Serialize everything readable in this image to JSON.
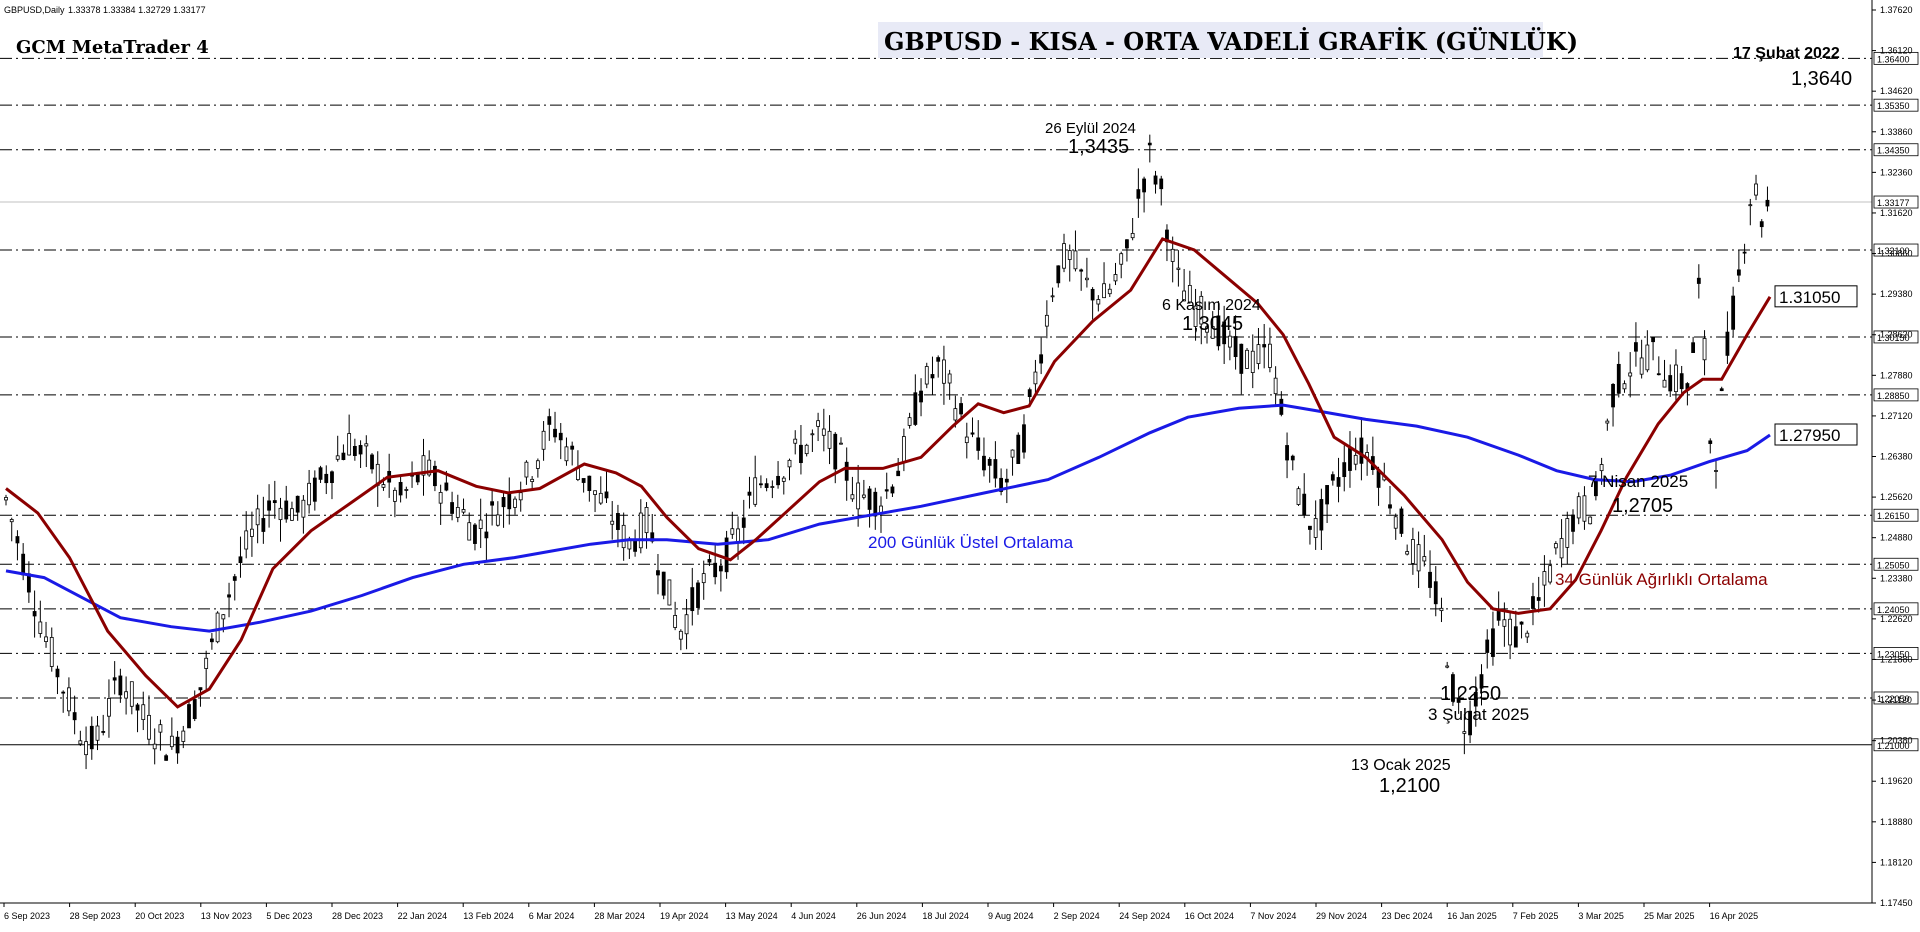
{
  "window": {
    "symbol_header": "GBPUSD,Daily",
    "ohlc_header": "1.33378 1.33384 1.32729 1.33177",
    "watermark": "GCM MetaTrader 4",
    "title": "GBPUSD - KISA - ORTA VADELİ GRAFİK (GÜNLÜK)"
  },
  "colors": {
    "background": "#ffffff",
    "candle": "#000000",
    "ema200": "#1a1ae6",
    "wma34": "#8b0000",
    "level_line": "#000000",
    "grid_label_bg": "#ffffff"
  },
  "chart_data": {
    "type": "candlestick",
    "title": "GBPUSD - KISA - ORTA VADELİ GRAFİK (GÜNLÜK)",
    "xlabel": "",
    "ylabel": "",
    "ylim": [
      1.1745,
      1.3762
    ],
    "y_ticks": [
      "1.37620",
      "1.36120",
      "1.34620",
      "1.33860",
      "1.32360",
      "1.31620",
      "1.30860",
      "1.29380",
      "1.28620",
      "1.27880",
      "1.27120",
      "1.26380",
      "1.25620",
      "1.24880",
      "1.23380",
      "1.22620",
      "1.21880",
      "1.21120",
      "1.20380",
      "1.19620",
      "1.18880",
      "1.18120",
      "1.17450"
    ],
    "x_ticks": [
      "6 Sep 2023",
      "28 Sep 2023",
      "20 Oct 2023",
      "13 Nov 2023",
      "5 Dec 2023",
      "28 Dec 2023",
      "22 Jan 2024",
      "13 Feb 2024",
      "6 Mar 2024",
      "28 Mar 2024",
      "19 Apr 2024",
      "13 May 2024",
      "4 Jun 2024",
      "26 Jun 2024",
      "18 Jul 2024",
      "9 Aug 2024",
      "2 Sep 2024",
      "24 Sep 2024",
      "16 Oct 2024",
      "7 Nov 2024",
      "29 Nov 2024",
      "23 Dec 2024",
      "16 Jan 2025",
      "7 Feb 2025",
      "3 Mar 2025",
      "25 Mar 2025",
      "16 Apr 2025"
    ],
    "horizontal_levels": [
      {
        "value": 1.364,
        "label": "1.36400"
      },
      {
        "value": 1.3535,
        "label": "1.35350"
      },
      {
        "value": 1.3435,
        "label": "1.34350"
      },
      {
        "value": 1.321,
        "label": "1.32100"
      },
      {
        "value": 1.3015,
        "label": "1.30150"
      },
      {
        "value": 1.2885,
        "label": "1.28850"
      },
      {
        "value": 1.2615,
        "label": "1.26150"
      },
      {
        "value": 1.2505,
        "label": "1.25050"
      },
      {
        "value": 1.2405,
        "label": "1.24050"
      },
      {
        "value": 1.2305,
        "label": "1.23050"
      },
      {
        "value": 1.2205,
        "label": "1.22050"
      },
      {
        "value": 1.21,
        "label": "1.21000"
      }
    ],
    "current_price": {
      "value": 1.33177,
      "label": "1.33177"
    },
    "series": [
      {
        "name": "200 Günlük Üstel Ortalama",
        "color": "#1a1ae6",
        "end_label": "1.27950",
        "points": [
          [
            0,
            1.249
          ],
          [
            30,
            1.2475
          ],
          [
            60,
            1.243
          ],
          [
            90,
            1.2385
          ],
          [
            130,
            1.2365
          ],
          [
            160,
            1.2355
          ],
          [
            200,
            1.2375
          ],
          [
            240,
            1.24
          ],
          [
            280,
            1.2435
          ],
          [
            320,
            1.2475
          ],
          [
            360,
            1.2505
          ],
          [
            400,
            1.252
          ],
          [
            430,
            1.2535
          ],
          [
            460,
            1.255
          ],
          [
            490,
            1.256
          ],
          [
            520,
            1.256
          ],
          [
            560,
            1.255
          ],
          [
            600,
            1.256
          ],
          [
            640,
            1.2595
          ],
          [
            680,
            1.2615
          ],
          [
            720,
            1.2635
          ],
          [
            770,
            1.2665
          ],
          [
            820,
            1.2695
          ],
          [
            860,
            1.2745
          ],
          [
            900,
            1.28
          ],
          [
            930,
            1.2835
          ],
          [
            970,
            1.2855
          ],
          [
            1005,
            1.2862
          ],
          [
            1030,
            1.285
          ],
          [
            1070,
            1.283
          ],
          [
            1110,
            1.2815
          ],
          [
            1150,
            1.279
          ],
          [
            1190,
            1.275
          ],
          [
            1220,
            1.2715
          ],
          [
            1250,
            1.2695
          ],
          [
            1280,
            1.269
          ],
          [
            1310,
            1.2705
          ],
          [
            1340,
            1.2735
          ],
          [
            1370,
            1.276
          ],
          [
            1388,
            1.2795
          ]
        ]
      },
      {
        "name": "34 Günlük Ağırlıklı Ortalama",
        "color": "#8b0000",
        "end_label": "1.31050",
        "points": [
          [
            0,
            1.2675
          ],
          [
            25,
            1.262
          ],
          [
            50,
            1.252
          ],
          [
            80,
            1.2355
          ],
          [
            110,
            1.2255
          ],
          [
            135,
            1.2185
          ],
          [
            160,
            1.2225
          ],
          [
            185,
            1.2335
          ],
          [
            210,
            1.2495
          ],
          [
            240,
            1.258
          ],
          [
            270,
            1.264
          ],
          [
            300,
            1.27
          ],
          [
            340,
            1.2715
          ],
          [
            370,
            1.268
          ],
          [
            395,
            1.2665
          ],
          [
            420,
            1.2675
          ],
          [
            455,
            1.273
          ],
          [
            480,
            1.271
          ],
          [
            500,
            1.268
          ],
          [
            520,
            1.261
          ],
          [
            545,
            1.254
          ],
          [
            570,
            1.2515
          ],
          [
            590,
            1.256
          ],
          [
            615,
            1.2625
          ],
          [
            640,
            1.269
          ],
          [
            660,
            1.272
          ],
          [
            690,
            1.272
          ],
          [
            720,
            1.2745
          ],
          [
            745,
            1.2815
          ],
          [
            765,
            1.2865
          ],
          [
            785,
            1.2845
          ],
          [
            805,
            1.286
          ],
          [
            825,
            1.296
          ],
          [
            855,
            1.305
          ],
          [
            885,
            1.312
          ],
          [
            910,
            1.3235
          ],
          [
            935,
            1.321
          ],
          [
            960,
            1.315
          ],
          [
            985,
            1.309
          ],
          [
            1005,
            1.302
          ],
          [
            1025,
            1.291
          ],
          [
            1045,
            1.279
          ],
          [
            1070,
            1.2745
          ],
          [
            1100,
            1.266
          ],
          [
            1130,
            1.256
          ],
          [
            1150,
            1.2465
          ],
          [
            1170,
            1.2405
          ],
          [
            1190,
            1.2395
          ],
          [
            1215,
            1.2405
          ],
          [
            1235,
            1.247
          ],
          [
            1255,
            1.258
          ],
          [
            1275,
            1.27
          ],
          [
            1300,
            1.282
          ],
          [
            1320,
            1.289
          ],
          [
            1335,
            1.292
          ],
          [
            1350,
            1.292
          ],
          [
            1370,
            1.302
          ],
          [
            1388,
            1.3105
          ]
        ]
      }
    ],
    "annotations": [
      {
        "text": "26 Eylül 2024",
        "price": 1.3435,
        "kind": "date"
      },
      {
        "text": "1,3435",
        "price": 1.3435,
        "kind": "price"
      },
      {
        "text": "6 Kasım 2024",
        "price": 1.3045,
        "kind": "date"
      },
      {
        "text": "1,3045",
        "price": 1.3045,
        "kind": "price"
      },
      {
        "text": "13 Ocak 2025",
        "price": 1.21,
        "kind": "date"
      },
      {
        "text": "1,2100",
        "price": 1.21,
        "kind": "price"
      },
      {
        "text": "1,2250",
        "price": 1.225,
        "kind": "price"
      },
      {
        "text": "3 Şubat 2025",
        "price": 1.225,
        "kind": "date"
      },
      {
        "text": "7 Nisan 2025",
        "price": 1.2705,
        "kind": "date"
      },
      {
        "text": "1,2705",
        "price": 1.2705,
        "kind": "price"
      },
      {
        "text": "17 Şubat 2022",
        "price": 1.364,
        "kind": "date"
      },
      {
        "text": "1,3640",
        "price": 1.364,
        "kind": "price"
      }
    ],
    "price_path": [
      [
        0,
        1.265
      ],
      [
        15,
        1.25
      ],
      [
        30,
        1.235
      ],
      [
        45,
        1.223
      ],
      [
        60,
        1.212
      ],
      [
        70,
        1.21
      ],
      [
        90,
        1.225
      ],
      [
        110,
        1.215
      ],
      [
        130,
        1.209
      ],
      [
        150,
        1.22
      ],
      [
        170,
        1.24
      ],
      [
        190,
        1.255
      ],
      [
        210,
        1.265
      ],
      [
        230,
        1.262
      ],
      [
        250,
        1.27
      ],
      [
        270,
        1.278
      ],
      [
        290,
        1.272
      ],
      [
        310,
        1.265
      ],
      [
        330,
        1.272
      ],
      [
        350,
        1.265
      ],
      [
        370,
        1.258
      ],
      [
        390,
        1.264
      ],
      [
        410,
        1.27
      ],
      [
        430,
        1.282
      ],
      [
        445,
        1.275
      ],
      [
        460,
        1.268
      ],
      [
        475,
        1.262
      ],
      [
        490,
        1.255
      ],
      [
        505,
        1.26
      ],
      [
        520,
        1.245
      ],
      [
        530,
        1.235
      ],
      [
        545,
        1.245
      ],
      [
        560,
        1.25
      ],
      [
        575,
        1.256
      ],
      [
        590,
        1.268
      ],
      [
        610,
        1.272
      ],
      [
        625,
        1.276
      ],
      [
        640,
        1.28
      ],
      [
        655,
        1.275
      ],
      [
        670,
        1.266
      ],
      [
        690,
        1.265
      ],
      [
        705,
        1.274
      ],
      [
        720,
        1.29
      ],
      [
        735,
        1.295
      ],
      [
        745,
        1.288
      ],
      [
        760,
        1.278
      ],
      [
        775,
        1.272
      ],
      [
        785,
        1.268
      ],
      [
        800,
        1.278
      ],
      [
        815,
        1.3
      ],
      [
        825,
        1.315
      ],
      [
        835,
        1.32
      ],
      [
        850,
        1.313
      ],
      [
        865,
        1.31
      ],
      [
        880,
        1.318
      ],
      [
        892,
        1.334
      ],
      [
        900,
        1.342
      ],
      [
        910,
        1.333
      ],
      [
        920,
        1.315
      ],
      [
        935,
        1.308
      ],
      [
        950,
        1.305
      ],
      [
        965,
        1.298
      ],
      [
        980,
        1.296
      ],
      [
        995,
        1.298
      ],
      [
        1005,
        1.282
      ],
      [
        1015,
        1.268
      ],
      [
        1030,
        1.258
      ],
      [
        1045,
        1.268
      ],
      [
        1060,
        1.276
      ],
      [
        1075,
        1.275
      ],
      [
        1090,
        1.265
      ],
      [
        1105,
        1.254
      ],
      [
        1120,
        1.248
      ],
      [
        1130,
        1.238
      ],
      [
        1140,
        1.22
      ],
      [
        1150,
        1.214
      ],
      [
        1160,
        1.225
      ],
      [
        1175,
        1.238
      ],
      [
        1190,
        1.234
      ],
      [
        1205,
        1.241
      ],
      [
        1220,
        1.253
      ],
      [
        1235,
        1.262
      ],
      [
        1250,
        1.264
      ],
      [
        1265,
        1.29
      ],
      [
        1280,
        1.296
      ],
      [
        1295,
        1.298
      ],
      [
        1310,
        1.292
      ],
      [
        1325,
        1.291
      ],
      [
        1333,
        1.315
      ],
      [
        1340,
        1.28
      ],
      [
        1345,
        1.274
      ],
      [
        1355,
        1.3
      ],
      [
        1365,
        1.318
      ],
      [
        1375,
        1.338
      ],
      [
        1380,
        1.328
      ],
      [
        1388,
        1.3318
      ]
    ]
  },
  "legend": {
    "ema200_label": "200 Günlük Üstel Ortalama",
    "wma34_label": "34 Günlük Ağırlıklı Ortalama"
  }
}
